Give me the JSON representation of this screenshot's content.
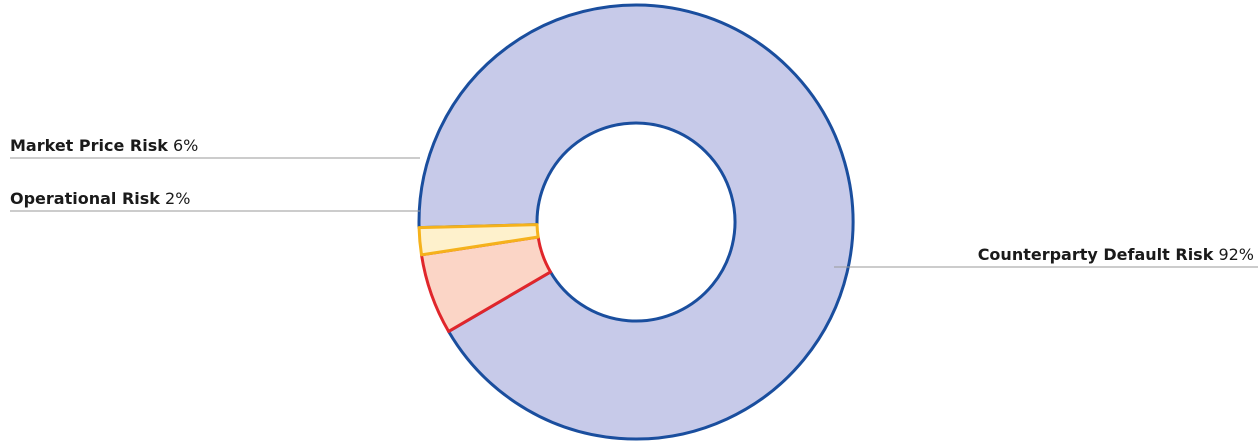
{
  "chart_data": {
    "type": "pie",
    "style": "donut",
    "slices": [
      {
        "name": "Counterparty Default Risk",
        "value": 92,
        "value_label": "92%",
        "fill": "#c7cae9",
        "stroke": "#1a4e9e"
      },
      {
        "name": "Market Price Risk",
        "value": 6,
        "value_label": "6%",
        "fill": "#fbd5c6",
        "stroke": "#e0262b"
      },
      {
        "name": "Operational Risk",
        "value": 2,
        "value_label": "2%",
        "fill": "#fef1cc",
        "stroke": "#f5b21c"
      }
    ],
    "legend": "none",
    "labels": "leader-lines"
  }
}
